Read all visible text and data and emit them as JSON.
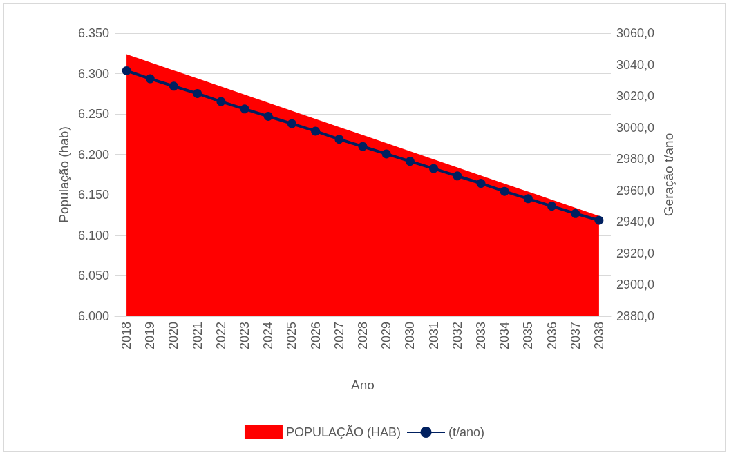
{
  "chart_data": {
    "type": "area",
    "categories": [
      "2018",
      "2019",
      "2020",
      "2021",
      "2022",
      "2023",
      "2024",
      "2025",
      "2026",
      "2027",
      "2028",
      "2029",
      "2030",
      "2031",
      "2032",
      "2033",
      "2034",
      "2035",
      "2036",
      "2037",
      "2038"
    ],
    "series": [
      {
        "name": "POPULAÇÃO (HAB)",
        "color": "#ff0000",
        "values": [
          6324,
          6314,
          6304,
          6294,
          6284,
          6274,
          6264,
          6254,
          6244,
          6234,
          6224,
          6214,
          6204,
          6194,
          6184,
          6174,
          6164,
          6154,
          6144,
          6134,
          6124
        ]
      },
      {
        "name": "(t/ano)",
        "type": "line",
        "axis": "y2",
        "marker": "circle",
        "color": "#002060",
        "values": [
          3036.1,
          3031.0,
          3026.3,
          3021.6,
          3016.5,
          3011.8,
          3007.1,
          3002.4,
          2997.7,
          2992.6,
          2987.9,
          2983.2,
          2978.5,
          2973.9,
          2969.2,
          2964.5,
          2959.4,
          2954.7,
          2950.0,
          2945.3,
          2941.0
        ]
      }
    ],
    "xlabel": "Ano",
    "ylabel": "População (hab)",
    "y2label": "Geração t/ano",
    "ylim": [
      6000,
      6350
    ],
    "yticks": [
      {
        "value": 6000,
        "label": "6.000"
      },
      {
        "value": 6050,
        "label": "6.050"
      },
      {
        "value": 6100,
        "label": "6.100"
      },
      {
        "value": 6150,
        "label": "6.150"
      },
      {
        "value": 6200,
        "label": "6.200"
      },
      {
        "value": 6250,
        "label": "6.250"
      },
      {
        "value": 6300,
        "label": "6.300"
      },
      {
        "value": 6350,
        "label": "6.350"
      }
    ],
    "y2lim": [
      2880,
      3060
    ],
    "y2ticks": [
      {
        "value": 2880,
        "label": "2880,0"
      },
      {
        "value": 2900,
        "label": "2900,0"
      },
      {
        "value": 2920,
        "label": "2920,0"
      },
      {
        "value": 2940,
        "label": "2940,0"
      },
      {
        "value": 2960,
        "label": "2960,0"
      },
      {
        "value": 2980,
        "label": "2980,0"
      },
      {
        "value": 3000,
        "label": "3000,0"
      },
      {
        "value": 3020,
        "label": "3020,0"
      },
      {
        "value": 3040,
        "label": "3040,0"
      },
      {
        "value": 3060,
        "label": "3060,0"
      }
    ],
    "grid": "y",
    "legend": "bottom",
    "line_style": "solid"
  }
}
